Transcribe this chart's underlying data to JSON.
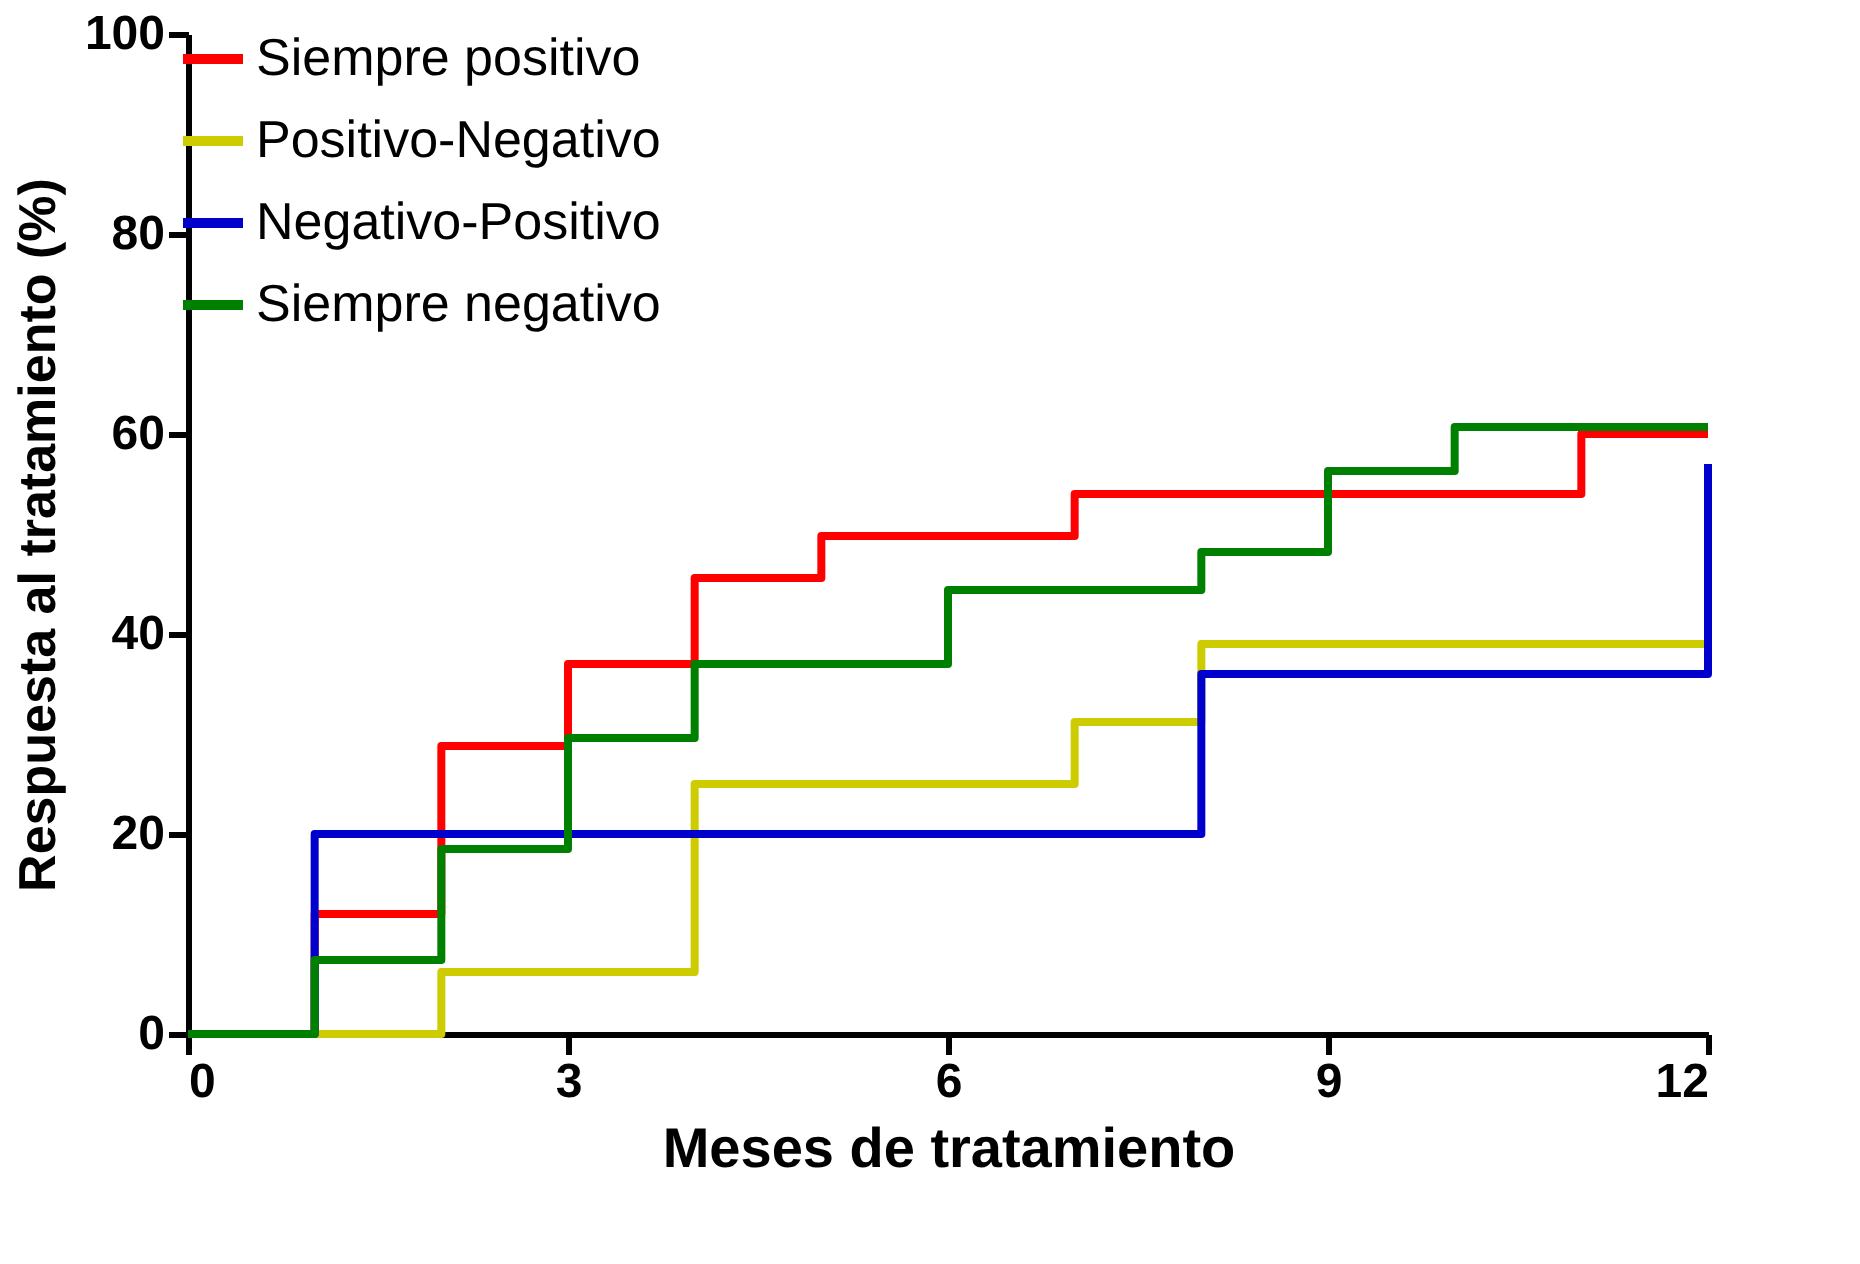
{
  "chart_data": {
    "type": "step",
    "xlabel": "Meses de tratamiento",
    "ylabel": "Respuesta al tratamiento (%)",
    "xlim": [
      0,
      12
    ],
    "xticks": [
      0,
      3,
      6,
      9,
      12
    ],
    "ylim": [
      0,
      100
    ],
    "yticks": [
      0,
      20,
      40,
      60,
      80,
      100
    ],
    "grid": false,
    "legend": "top left",
    "marker": "none",
    "line_style": "solid",
    "series": [
      {
        "name": "Siempre positivo",
        "color": "#ff0000",
        "x": [
          0,
          1,
          2,
          3,
          4,
          5,
          7,
          11,
          12
        ],
        "values": [
          0,
          12,
          28.8,
          37,
          45.6,
          49.8,
          54,
          60,
          60
        ]
      },
      {
        "name": "Positivo-Negativo",
        "color": "#cccc00",
        "x": [
          0,
          2,
          4,
          7,
          8,
          12
        ],
        "values": [
          0,
          6.2,
          25,
          31.2,
          39,
          39
        ]
      },
      {
        "name": "Negativo-Positivo",
        "color": "#0000cc",
        "x": [
          0,
          1,
          8,
          12
        ],
        "values": [
          0,
          20,
          36,
          57
        ]
      },
      {
        "name": "Siempre negativo",
        "color": "#008000",
        "x": [
          0,
          1,
          2,
          3,
          4,
          6,
          8,
          9,
          10,
          12
        ],
        "values": [
          0,
          7.4,
          18.5,
          29.6,
          37,
          44.4,
          48.2,
          56.3,
          60.7,
          60.7
        ]
      }
    ]
  }
}
